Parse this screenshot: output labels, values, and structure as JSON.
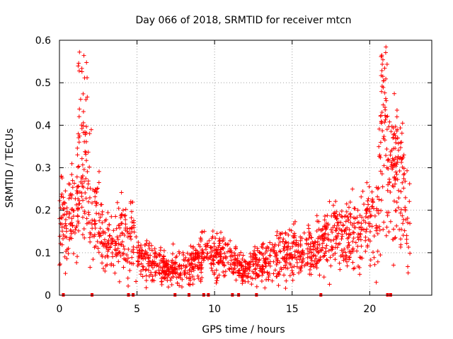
{
  "colors": {
    "series": "#ff0000",
    "grid": "#a0a0a0",
    "axis": "#000000"
  },
  "chart_data": {
    "type": "scatter",
    "title": "Day 066 of 2018, SRMTID for receiver mtcn",
    "xlabel": "GPS time / hours",
    "ylabel": "SRMTID / TECUs",
    "xlim": [
      0,
      24
    ],
    "ylim": [
      0,
      0.6
    ],
    "xticks": [
      0,
      5,
      10,
      15,
      20
    ],
    "xtick_labels": [
      "0",
      "5",
      "10",
      "15",
      "20"
    ],
    "yticks": [
      0,
      0.1,
      0.2,
      0.3,
      0.4,
      0.5,
      0.6
    ],
    "ytick_labels": [
      "0",
      "0.1",
      "0.2",
      "0.3",
      "0.4",
      "0.5",
      "0.6"
    ],
    "grid": true,
    "marker": "plus",
    "series": [
      {
        "name": "SRMTID",
        "color": "#ff0000",
        "trend": {
          "x": [
            0,
            0.3,
            0.7,
            1.0,
            1.3,
            1.5,
            1.8,
            2.2,
            2.6,
            3.0,
            3.5,
            4.0,
            4.5,
            4.8,
            5.0,
            5.5,
            6.0,
            7.0,
            8.0,
            9.0,
            9.5,
            10.0,
            11.0,
            12.0,
            12.5,
            13.0,
            14.0,
            15.0,
            16.0,
            17.0,
            17.5,
            18.0,
            18.5,
            19.0,
            19.5,
            20.0,
            20.3,
            20.6,
            20.9,
            21.1,
            21.4,
            21.7,
            22.0,
            22.3,
            22.6
          ],
          "y": [
            0.14,
            0.18,
            0.17,
            0.22,
            0.28,
            0.27,
            0.24,
            0.2,
            0.16,
            0.12,
            0.13,
            0.14,
            0.12,
            0.15,
            0.09,
            0.08,
            0.07,
            0.065,
            0.065,
            0.08,
            0.11,
            0.09,
            0.08,
            0.065,
            0.07,
            0.07,
            0.09,
            0.1,
            0.1,
            0.12,
            0.14,
            0.13,
            0.14,
            0.15,
            0.15,
            0.17,
            0.2,
            0.24,
            0.33,
            0.32,
            0.27,
            0.27,
            0.25,
            0.21,
            0.15
          ]
        },
        "spread": 0.55,
        "point_count": 1700,
        "highlights": [
          {
            "x": [
              1.2,
              1.8
            ],
            "y": [
              0.35,
              0.58
            ]
          },
          {
            "x": [
              20.6,
              21.2
            ],
            "y": [
              0.4,
              0.59
            ]
          },
          {
            "x": [
              21.5,
              22.2
            ],
            "y": [
              0.3,
              0.41
            ]
          }
        ],
        "zero_markers": [
          0.25,
          2.1,
          4.45,
          4.75,
          7.45,
          8.35,
          9.3,
          9.6,
          11.15,
          11.55,
          12.7,
          16.85,
          21.15,
          21.35
        ]
      }
    ]
  }
}
